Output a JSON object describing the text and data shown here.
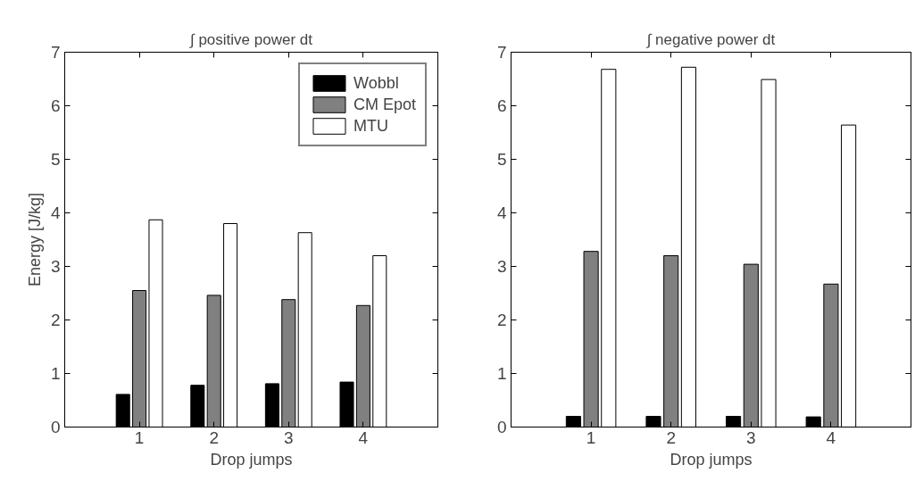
{
  "chart_data": [
    {
      "type": "bar",
      "title": "∫ positive power dt",
      "xlabel": "Drop jumps",
      "ylabel": "Energy [J/kg]",
      "categories": [
        "1",
        "2",
        "3",
        "4"
      ],
      "ylim": [
        0,
        7
      ],
      "yticks": [
        0,
        1,
        2,
        3,
        4,
        5,
        6,
        7
      ],
      "grid": false,
      "legend": "top right",
      "series": [
        {
          "name": "Wobbl",
          "color": "#000000",
          "values": [
            0.61,
            0.78,
            0.81,
            0.84
          ]
        },
        {
          "name": "CM Epot",
          "color": "#808080",
          "values": [
            2.55,
            2.46,
            2.38,
            2.27
          ]
        },
        {
          "name": "MTU",
          "color": "#ffffff",
          "values": [
            3.87,
            3.8,
            3.63,
            3.2
          ]
        }
      ]
    },
    {
      "type": "bar",
      "title": "∫ negative power dt",
      "xlabel": "Drop jumps",
      "categories": [
        "1",
        "2",
        "3",
        "4"
      ],
      "ylim": [
        0,
        7
      ],
      "yticks": [
        0,
        1,
        2,
        3,
        4,
        5,
        6,
        7
      ],
      "grid": false,
      "series": [
        {
          "color": "#000000",
          "values": [
            0.2,
            0.2,
            0.2,
            0.19
          ]
        },
        {
          "color": "#808080",
          "values": [
            3.28,
            3.2,
            3.04,
            2.67
          ]
        },
        {
          "color": "#ffffff",
          "values": [
            6.68,
            6.72,
            6.49,
            5.64
          ]
        }
      ]
    }
  ]
}
